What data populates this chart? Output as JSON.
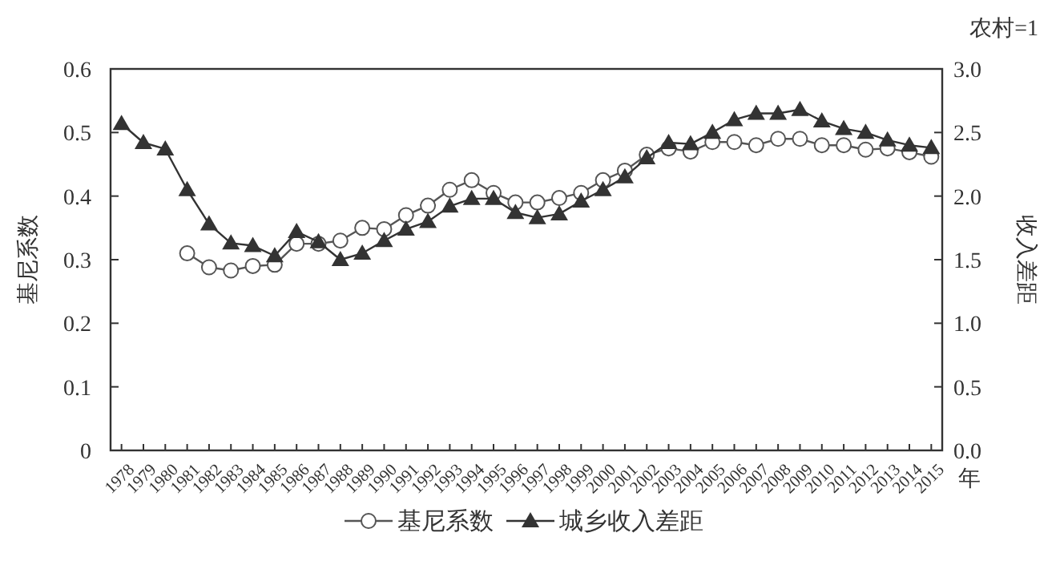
{
  "chart_data": {
    "type": "line",
    "categories": [
      "1978",
      "1979",
      "1980",
      "1981",
      "1982",
      "1983",
      "1984",
      "1985",
      "1986",
      "1987",
      "1988",
      "1989",
      "1990",
      "1991",
      "1992",
      "1993",
      "1994",
      "1995",
      "1996",
      "1997",
      "1998",
      "1999",
      "2000",
      "2001",
      "2002",
      "2003",
      "2004",
      "2005",
      "2006",
      "2007",
      "2008",
      "2009",
      "2010",
      "2011",
      "2012",
      "2013",
      "2014",
      "2015"
    ],
    "series": [
      {
        "name": "基尼系数",
        "color": "#555555",
        "marker": "circle",
        "axis": "y",
        "values": [
          null,
          null,
          null,
          0.31,
          0.288,
          0.283,
          0.29,
          0.292,
          0.325,
          0.325,
          0.33,
          0.35,
          0.348,
          0.37,
          0.385,
          0.41,
          0.425,
          0.405,
          0.39,
          0.39,
          0.397,
          0.405,
          0.425,
          0.44,
          0.465,
          0.475,
          0.47,
          0.485,
          0.485,
          0.48,
          0.49,
          0.49,
          0.48,
          0.48,
          0.473,
          0.475,
          0.469,
          0.462
        ]
      },
      {
        "name": "城乡收入差距",
        "color": "#333333",
        "marker": "triangle",
        "axis": "y2",
        "values": [
          2.57,
          2.42,
          2.37,
          2.05,
          1.78,
          1.63,
          1.61,
          1.53,
          1.72,
          1.64,
          1.5,
          1.55,
          1.65,
          1.74,
          1.8,
          1.92,
          1.98,
          1.98,
          1.87,
          1.83,
          1.86,
          1.96,
          2.05,
          2.15,
          2.3,
          2.42,
          2.41,
          2.5,
          2.6,
          2.65,
          2.65,
          2.68,
          2.59,
          2.53,
          2.5,
          2.44,
          2.4,
          2.38
        ]
      }
    ],
    "xlabel": "年",
    "ylabel": "基尼系数",
    "y2label": "收入差距",
    "annotations": [
      "农村=1"
    ],
    "ylim": [
      0,
      0.6
    ],
    "yticks": [
      0,
      0.1,
      0.2,
      0.3,
      0.4,
      0.5,
      0.6
    ],
    "y2lim": [
      0,
      3
    ],
    "y2ticks": [
      {
        "value": 0,
        "label": "0.0"
      },
      {
        "value": 0.5,
        "label": "0.5"
      },
      {
        "value": 1,
        "label": "1.0"
      },
      {
        "value": 1.5,
        "label": "1.5"
      },
      {
        "value": 2,
        "label": "2.0"
      },
      {
        "value": 2.5,
        "label": "2.5"
      },
      {
        "value": 3,
        "label": "3.0"
      }
    ],
    "grid": false,
    "legend": "bottom",
    "line_style": "solid"
  }
}
